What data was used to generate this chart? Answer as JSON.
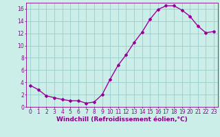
{
  "x": [
    0,
    1,
    2,
    3,
    4,
    5,
    6,
    7,
    8,
    9,
    10,
    11,
    12,
    13,
    14,
    15,
    16,
    17,
    18,
    19,
    20,
    21,
    22,
    23
  ],
  "y": [
    3.5,
    2.8,
    1.8,
    1.5,
    1.2,
    1.0,
    1.0,
    0.6,
    0.8,
    2.0,
    4.5,
    6.8,
    8.5,
    10.5,
    12.2,
    14.3,
    15.9,
    16.5,
    16.5,
    15.8,
    14.8,
    13.2,
    12.1,
    12.3
  ],
  "line_color": "#990099",
  "marker": "D",
  "marker_size": 2,
  "bg_color": "#cceee8",
  "grid_color": "#99cccc",
  "xlabel": "Windchill (Refroidissement éolien,°C)",
  "xlim": [
    -0.5,
    23.5
  ],
  "ylim": [
    0,
    17
  ],
  "yticks": [
    0,
    2,
    4,
    6,
    8,
    10,
    12,
    14,
    16
  ],
  "xticks": [
    0,
    1,
    2,
    3,
    4,
    5,
    6,
    7,
    8,
    9,
    10,
    11,
    12,
    13,
    14,
    15,
    16,
    17,
    18,
    19,
    20,
    21,
    22,
    23
  ],
  "xlabel_fontsize": 6.5,
  "tick_fontsize": 5.5,
  "line_width": 1.0,
  "text_color": "#880088"
}
